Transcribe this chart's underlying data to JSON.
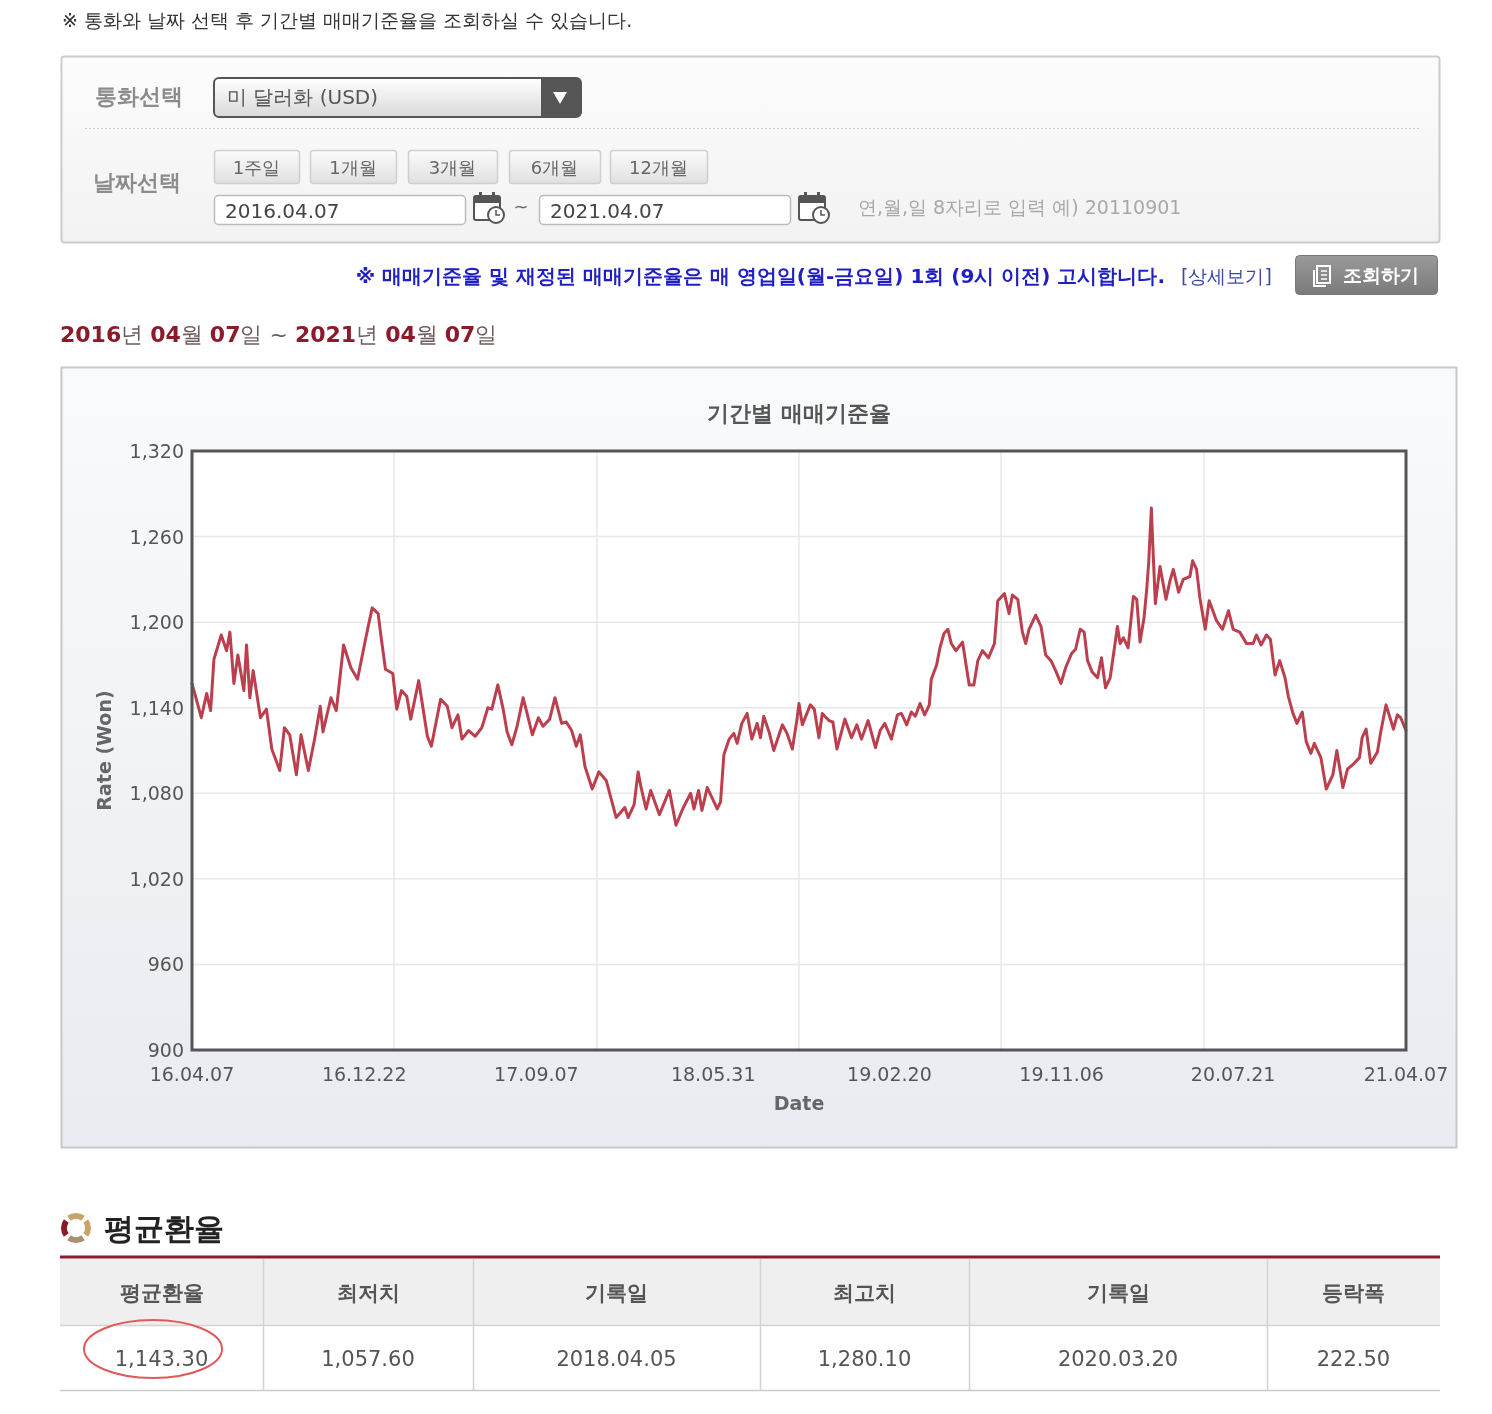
{
  "chart_data": {
    "type": "line",
    "title": "기간별 매매기준율",
    "xlabel": "Date",
    "ylabel": "Rate (Won)",
    "x": [
      "2016-04-07",
      "2016-04-21",
      "2016-04-29",
      "2016-05-05",
      "2016-05-10",
      "2016-05-21",
      "2016-05-29",
      "2016-06-03",
      "2016-06-09",
      "2016-06-15",
      "2016-06-24",
      "2016-06-28",
      "2016-07-03",
      "2016-07-08",
      "2016-07-19",
      "2016-07-28",
      "2016-08-05",
      "2016-08-17",
      "2016-08-24",
      "2016-09-01",
      "2016-09-11",
      "2016-09-18",
      "2016-09-29",
      "2016-10-08",
      "2016-10-17",
      "2016-10-21",
      "2016-11-02",
      "2016-11-10",
      "2016-11-21",
      "2016-12-02",
      "2016-12-12",
      "2016-12-24",
      "2017-01-03",
      "2017-01-12",
      "2017-01-16",
      "2017-01-23",
      "2017-02-03",
      "2017-02-09",
      "2017-02-16",
      "2017-02-24",
      "2017-03-02",
      "2017-03-14",
      "2017-03-18",
      "2017-03-27",
      "2017-04-02",
      "2017-04-16",
      "2017-04-26",
      "2017-05-03",
      "2017-05-12",
      "2017-05-18",
      "2017-05-28",
      "2017-06-07",
      "2017-06-17",
      "2017-06-26",
      "2017-07-02",
      "2017-07-11",
      "2017-07-19",
      "2017-07-25",
      "2017-08-01",
      "2017-08-09",
      "2017-08-18",
      "2017-08-24",
      "2017-09-01",
      "2017-09-10",
      "2017-09-17",
      "2017-09-27",
      "2017-10-05",
      "2017-10-15",
      "2017-10-22",
      "2017-10-30",
      "2017-11-06",
      "2017-11-12",
      "2017-11-19",
      "2017-11-30",
      "2017-12-10",
      "2017-12-21",
      "2018-01-05",
      "2018-01-18",
      "2018-01-23",
      "2018-02-01",
      "2018-02-07",
      "2018-02-11",
      "2018-02-19",
      "2018-02-26",
      "2018-03-11",
      "2018-03-26",
      "2018-04-05",
      "2018-04-15",
      "2018-04-27",
      "2018-05-02",
      "2018-05-09",
      "2018-05-14",
      "2018-05-22",
      "2018-05-30",
      "2018-06-06",
      "2018-06-11",
      "2018-06-16",
      "2018-06-24",
      "2018-07-01",
      "2018-07-06",
      "2018-07-13",
      "2018-07-21",
      "2018-07-28",
      "2018-08-05",
      "2018-08-10",
      "2018-08-15",
      "2018-08-23",
      "2018-08-30",
      "2018-09-12",
      "2018-09-19",
      "2018-09-27",
      "2018-10-04",
      "2018-10-07",
      "2018-10-12",
      "2018-10-24",
      "2018-10-30",
      "2018-11-06",
      "2018-11-11",
      "2018-11-21",
      "2018-11-27",
      "2018-12-03",
      "2018-12-15",
      "2018-12-25",
      "2019-01-02",
      "2019-01-09",
      "2019-01-19",
      "2019-01-30",
      "2019-02-06",
      "2019-02-13",
      "2019-02-23",
      "2019-03-04",
      "2019-03-10",
      "2019-03-18",
      "2019-03-25",
      "2019-03-31",
      "2019-04-07",
      "2019-04-14",
      "2019-04-21",
      "2019-04-24",
      "2019-05-02",
      "2019-05-07",
      "2019-05-13",
      "2019-05-19",
      "2019-05-24",
      "2019-05-31",
      "2019-06-10",
      "2019-06-20",
      "2019-06-27",
      "2019-07-03",
      "2019-07-10",
      "2019-07-19",
      "2019-07-28",
      "2019-08-02",
      "2019-08-12",
      "2019-08-19",
      "2019-08-24",
      "2019-09-01",
      "2019-09-08",
      "2019-09-13",
      "2019-09-18",
      "2019-09-28",
      "2019-10-06",
      "2019-10-13",
      "2019-10-21",
      "2019-10-28",
      "2019-11-05",
      "2019-11-12",
      "2019-11-21",
      "2019-11-27",
      "2019-12-04",
      "2019-12-10",
      "2019-12-15",
      "2019-12-22",
      "2019-12-30",
      "2020-01-05",
      "2020-01-11",
      "2020-01-18",
      "2020-01-29",
      "2020-02-02",
      "2020-02-07",
      "2020-02-14",
      "2020-02-22",
      "2020-02-27",
      "2020-03-03",
      "2020-03-09",
      "2020-03-13",
      "2020-03-16",
      "2020-03-20",
      "2020-03-22",
      "2020-03-26",
      "2020-04-02",
      "2020-04-11",
      "2020-04-17",
      "2020-04-22",
      "2020-04-30",
      "2020-05-07",
      "2020-05-17",
      "2020-05-21",
      "2020-05-27",
      "2020-06-01",
      "2020-06-09",
      "2020-06-15",
      "2020-06-26",
      "2020-07-05",
      "2020-07-14",
      "2020-07-21",
      "2020-07-31",
      "2020-08-10",
      "2020-08-20",
      "2020-08-25",
      "2020-09-01",
      "2020-09-09",
      "2020-09-15",
      "2020-09-22",
      "2020-09-29",
      "2020-10-07",
      "2020-10-12",
      "2020-10-19",
      "2020-10-25",
      "2020-11-02",
      "2020-11-08",
      "2020-11-15",
      "2020-11-20",
      "2020-11-30",
      "2020-12-08",
      "2020-12-18",
      "2020-12-24",
      "2021-01-02",
      "2021-01-09",
      "2021-01-19",
      "2021-01-27",
      "2021-01-31",
      "2021-02-06",
      "2021-02-13",
      "2021-02-23",
      "2021-02-28",
      "2021-03-08",
      "2021-03-14",
      "2021-03-19",
      "2021-03-25",
      "2021-03-30",
      "2021-04-07"
    ],
    "series": [
      {
        "color": "#bc3f4e",
        "values": [
          1157,
          1133,
          1150,
          1138,
          1174,
          1191,
          1180,
          1193,
          1157,
          1177,
          1152,
          1184,
          1147,
          1166,
          1133,
          1139,
          1111,
          1096,
          1126,
          1121,
          1093,
          1121,
          1096,
          1117,
          1141,
          1123,
          1147,
          1138,
          1184,
          1168,
          1160,
          1188,
          1210,
          1206,
          1191,
          1167,
          1164,
          1139,
          1152,
          1148,
          1132,
          1159,
          1147,
          1120,
          1113,
          1146,
          1141,
          1126,
          1135,
          1118,
          1124,
          1120,
          1126,
          1140,
          1139,
          1156,
          1139,
          1123,
          1114,
          1127,
          1147,
          1136,
          1121,
          1133,
          1127,
          1132,
          1147,
          1129,
          1130,
          1124,
          1113,
          1121,
          1099,
          1083,
          1095,
          1089,
          1063,
          1070,
          1063,
          1072,
          1095,
          1085,
          1069,
          1082,
          1065,
          1082,
          1057.6,
          1069,
          1080,
          1069,
          1082,
          1068,
          1084,
          1076,
          1069,
          1074,
          1107,
          1118,
          1122,
          1115,
          1129,
          1136,
          1118,
          1129,
          1119,
          1134,
          1123,
          1110,
          1128,
          1122,
          1111,
          1132,
          1143,
          1128,
          1142,
          1139,
          1119,
          1136,
          1131,
          1130,
          1111,
          1132,
          1119,
          1128,
          1118,
          1131,
          1112,
          1124,
          1129,
          1118,
          1135,
          1136,
          1128,
          1137,
          1134,
          1143,
          1135,
          1142,
          1160,
          1170,
          1182,
          1192,
          1195,
          1185,
          1180,
          1186,
          1156,
          1156,
          1173,
          1180,
          1175,
          1185,
          1215,
          1220,
          1206,
          1219,
          1216,
          1193,
          1185,
          1195,
          1205,
          1197,
          1177,
          1173,
          1166,
          1157,
          1168,
          1178,
          1181,
          1195,
          1193,
          1173,
          1165,
          1161,
          1175,
          1154,
          1161,
          1197,
          1185,
          1189,
          1182,
          1218,
          1216,
          1186,
          1203,
          1223,
          1242,
          1280.1,
          1256,
          1213,
          1239,
          1216,
          1229,
          1237,
          1221,
          1230,
          1232,
          1243,
          1237,
          1217,
          1195,
          1215,
          1201,
          1195,
          1208,
          1195,
          1193,
          1185,
          1185,
          1191,
          1184,
          1191,
          1188,
          1163,
          1173,
          1161,
          1148,
          1136,
          1129,
          1137,
          1116,
          1108,
          1115,
          1105,
          1083,
          1093,
          1110,
          1084,
          1097,
          1101,
          1105,
          1119,
          1125,
          1101,
          1109,
          1123,
          1142,
          1133,
          1125,
          1135,
          1133,
          1124
        ]
      }
    ],
    "xlim": [
      "2016-04-07",
      "2021-04-07"
    ],
    "xticks": [
      {
        "value": "2016-04-07",
        "label": "16.04.07"
      },
      {
        "value": "2016-12-22",
        "label": "16.12.22"
      },
      {
        "value": "2017-09-07",
        "label": "17.09.07"
      },
      {
        "value": "2018-05-31",
        "label": "18.05.31"
      },
      {
        "value": "2019-02-20",
        "label": "19.02.20"
      },
      {
        "value": "2019-11-06",
        "label": "19.11.06"
      },
      {
        "value": "2020-07-21",
        "label": "20.07.21"
      },
      {
        "value": "2021-04-07",
        "label": "21.04.07"
      },
      {
        "value": "2017-02-05",
        "label": null
      },
      {
        "value": "2017-12-07",
        "label": null
      },
      {
        "value": "2018-10-07",
        "label": null
      },
      {
        "value": "2019-08-07",
        "label": null
      },
      {
        "value": "2020-06-07",
        "label": null
      }
    ],
    "ylim": [
      900,
      1320
    ],
    "yticks": [
      900,
      960,
      {
        "value": 1020,
        "label": "1,020"
      },
      {
        "value": 1080,
        "label": "1,080"
      },
      {
        "value": 1140,
        "label": "1,140"
      },
      {
        "value": 1200,
        "label": "1,200"
      },
      {
        "value": 1260,
        "label": "1,260"
      },
      {
        "value": 1320,
        "label": "1,320"
      }
    ],
    "grid": true,
    "annotations": [
      "※ 통화와 날짜 선택 후 기간별 매매기준율을 조회하실 수 있습니다.",
      "통화선택",
      "미 달러화 (USD)",
      "날짜선택",
      "1주일",
      "1개월",
      "3개월",
      "6개월",
      "12개월",
      "2016.04.07",
      "~",
      "2021.04.07",
      "연,월,일 8자리로 입력 예) 20110901",
      "※ 매매기준율 및 재정된 매매기준율은 매 영업일(월-금요일) 1회 (9시 이전) 고시합니다.",
      "[상세보기]",
      "조회하기",
      "2016년 04월 07일 ~ 2021년 04월 07일",
      "평균환율",
      "평균환율",
      "최저치",
      "기록일",
      "최고치",
      "기록일",
      "등락폭",
      "1,143.30",
      "1,057.60",
      "2018.04.05",
      "1,280.10",
      "2020.03.20",
      "222.50"
    ]
  }
}
